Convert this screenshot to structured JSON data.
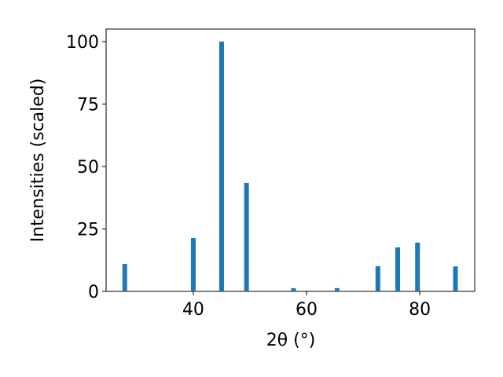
{
  "chart_data": {
    "type": "bar",
    "x": [
      27.9,
      40.0,
      45.0,
      49.4,
      57.7,
      65.4,
      72.6,
      76.1,
      79.6,
      86.3
    ],
    "values": [
      11.0,
      21.4,
      100,
      43.4,
      1.3,
      1.3,
      10.1,
      17.6,
      19.5,
      10.0
    ],
    "color": "#1f77b4",
    "xlabel": "2θ (°)",
    "ylabel": "Intensities (scaled)",
    "xlim": [
      24.6,
      89.7
    ],
    "xticks": [
      40,
      60,
      80
    ],
    "ylim": [
      0,
      105
    ],
    "yticks": [
      0,
      25,
      50,
      75,
      100
    ]
  }
}
